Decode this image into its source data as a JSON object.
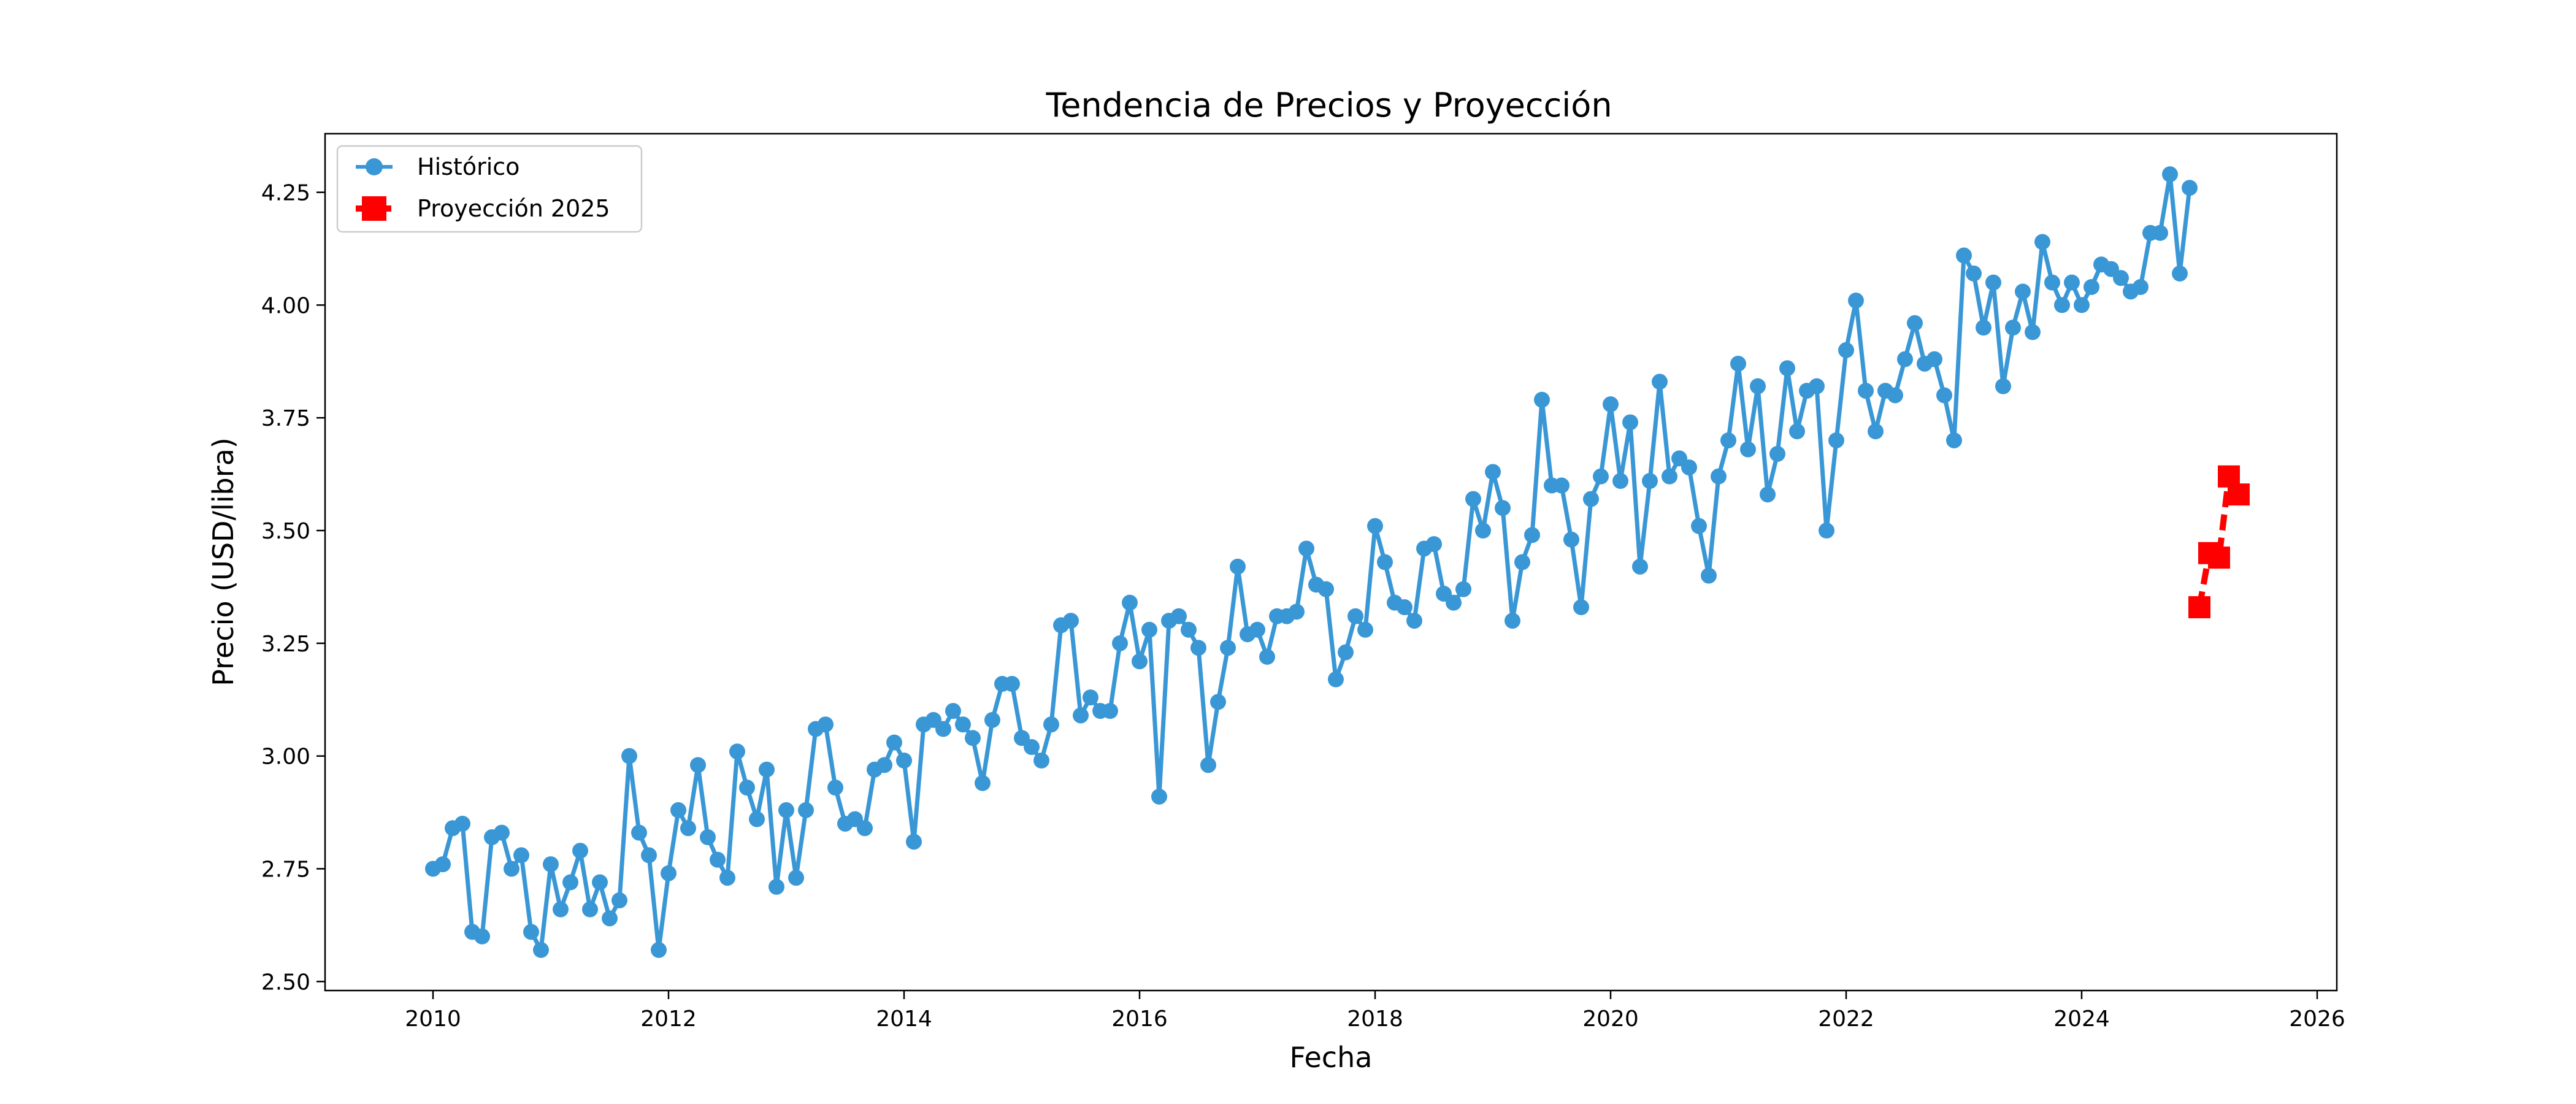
{
  "chart_data": {
    "type": "line",
    "title": "Tendencia de Precios y Proyección",
    "xlabel": "Fecha",
    "ylabel": "Precio (USD/libra)",
    "xlim": [
      "2009-02-01",
      "2026-03-01"
    ],
    "ylim": [
      2.48,
      4.38
    ],
    "xticks": [
      "2010",
      "2012",
      "2014",
      "2016",
      "2018",
      "2020",
      "2022",
      "2024",
      "2026"
    ],
    "yticks": [
      "2.50",
      "2.75",
      "3.00",
      "3.25",
      "3.50",
      "3.75",
      "4.00",
      "4.25"
    ],
    "grid": false,
    "legend_position": "top-left",
    "series": [
      {
        "name": "Histórico",
        "color": "#3a97d6",
        "style": "solid-line-circle-markers",
        "start": "2010-01",
        "frequency": "monthly",
        "values": [
          2.75,
          2.76,
          2.84,
          2.85,
          2.61,
          2.6,
          2.82,
          2.83,
          2.75,
          2.78,
          2.61,
          2.57,
          2.76,
          2.66,
          2.72,
          2.79,
          2.66,
          2.72,
          2.64,
          2.68,
          3.0,
          2.83,
          2.78,
          2.57,
          2.74,
          2.88,
          2.84,
          2.98,
          2.82,
          2.77,
          2.73,
          3.01,
          2.93,
          2.86,
          2.97,
          2.71,
          2.88,
          2.73,
          2.88,
          3.06,
          3.07,
          2.93,
          2.85,
          2.86,
          2.84,
          2.97,
          2.98,
          3.03,
          2.99,
          2.81,
          3.07,
          3.08,
          3.06,
          3.1,
          3.07,
          3.04,
          2.94,
          3.08,
          3.16,
          3.16,
          3.04,
          3.02,
          2.99,
          3.07,
          3.29,
          3.3,
          3.09,
          3.13,
          3.1,
          3.1,
          3.25,
          3.34,
          3.21,
          3.28,
          2.91,
          3.3,
          3.31,
          3.28,
          3.24,
          2.98,
          3.12,
          3.24,
          3.42,
          3.27,
          3.28,
          3.22,
          3.31,
          3.31,
          3.32,
          3.46,
          3.38,
          3.37,
          3.17,
          3.23,
          3.31,
          3.28,
          3.51,
          3.43,
          3.34,
          3.33,
          3.3,
          3.46,
          3.47,
          3.36,
          3.34,
          3.37,
          3.57,
          3.5,
          3.63,
          3.55,
          3.3,
          3.43,
          3.49,
          3.79,
          3.6,
          3.6,
          3.48,
          3.33,
          3.57,
          3.62,
          3.78,
          3.61,
          3.74,
          3.42,
          3.61,
          3.83,
          3.62,
          3.66,
          3.64,
          3.51,
          3.4,
          3.62,
          3.7,
          3.87,
          3.68,
          3.82,
          3.58,
          3.67,
          3.86,
          3.72,
          3.81,
          3.82,
          3.5,
          3.7,
          3.9,
          4.01,
          3.81,
          3.72,
          3.81,
          3.8,
          3.88,
          3.96,
          3.87,
          3.88,
          3.8,
          3.7,
          4.11,
          4.07,
          3.95,
          4.05,
          3.82,
          3.95,
          4.03,
          3.94,
          4.14,
          4.05,
          4.0,
          4.05,
          4.0,
          4.04,
          4.09,
          4.08,
          4.06,
          4.03,
          4.04,
          4.16,
          4.16,
          4.29,
          4.07,
          4.26
        ]
      },
      {
        "name": "Proyección 2025",
        "color": "#ff0000",
        "style": "dashed-line-square-markers",
        "start": "2025-01",
        "frequency": "monthly",
        "values": [
          3.33,
          3.45,
          3.44,
          3.62,
          3.58
        ]
      }
    ]
  }
}
